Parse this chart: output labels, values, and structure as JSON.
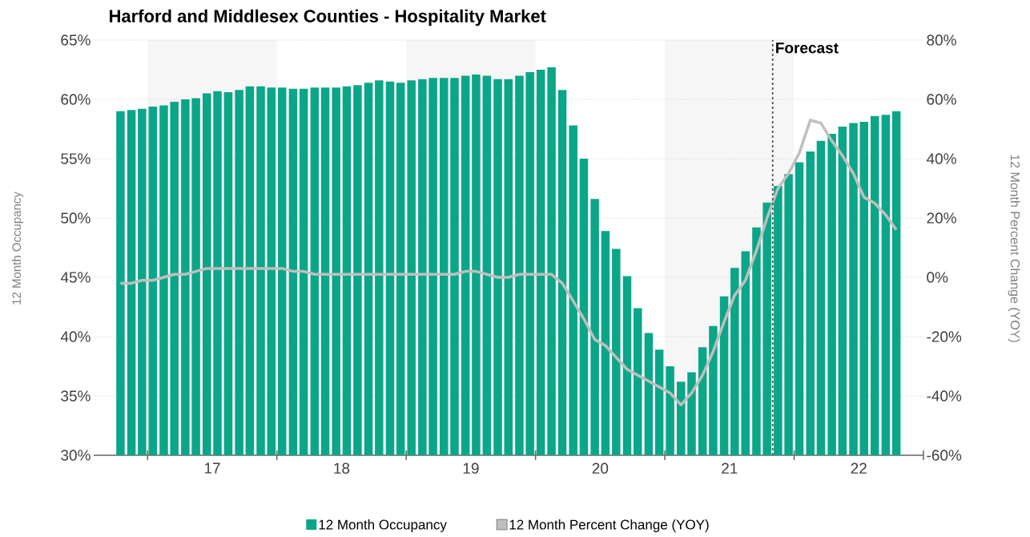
{
  "chart_data": {
    "type": "bar",
    "title": "Harford and Middlesex Counties - Hospitality Market",
    "ylabel": "12 Month Occupancy",
    "y2label": "12 Month Percent Change (YOY)",
    "x": [
      "2016-10-16",
      "2016-11-16",
      "2016-12-16",
      "2017-01-16",
      "2017-02-15",
      "2017-03-16",
      "2017-04-16",
      "2017-05-16",
      "2017-06-16",
      "2017-07-16",
      "2017-08-16",
      "2017-09-16",
      "2017-10-16",
      "2017-11-16",
      "2017-12-16",
      "2018-01-16",
      "2018-02-15",
      "2018-03-16",
      "2018-04-16",
      "2018-05-16",
      "2018-06-16",
      "2018-07-16",
      "2018-08-16",
      "2018-09-16",
      "2018-10-16",
      "2018-11-16",
      "2018-12-16",
      "2019-01-16",
      "2019-02-15",
      "2019-03-16",
      "2019-04-16",
      "2019-05-16",
      "2019-06-16",
      "2019-07-16",
      "2019-08-16",
      "2019-09-16",
      "2019-10-16",
      "2019-11-16",
      "2019-12-16",
      "2020-01-16",
      "2020-02-15",
      "2020-03-16",
      "2020-04-16",
      "2020-05-16",
      "2020-06-16",
      "2020-07-16",
      "2020-08-16",
      "2020-09-16",
      "2020-10-16",
      "2020-11-16",
      "2020-12-16",
      "2021-01-16",
      "2021-02-15",
      "2021-03-16",
      "2021-04-16",
      "2021-05-16",
      "2021-06-16",
      "2021-07-16",
      "2021-08-16",
      "2021-09-16",
      "2021-10-16",
      "2021-11-16",
      "2021-12-16",
      "2022-01-16",
      "2022-02-15",
      "2022-03-16",
      "2022-04-16",
      "2022-05-16",
      "2022-06-16",
      "2022-07-16",
      "2022-08-16",
      "2022-09-16",
      "2022-10-16"
    ],
    "xlim": [
      "2016-08-01",
      "2023-01-01"
    ],
    "xticks": [
      {
        "value": "2017-01-01",
        "label": null
      },
      {
        "value": "2017-07-01",
        "label": "17"
      },
      {
        "value": "2018-01-01",
        "label": null
      },
      {
        "value": "2018-07-01",
        "label": "18"
      },
      {
        "value": "2019-01-01",
        "label": null
      },
      {
        "value": "2019-07-01",
        "label": "19"
      },
      {
        "value": "2020-01-01",
        "label": null
      },
      {
        "value": "2020-07-01",
        "label": "20"
      },
      {
        "value": "2021-01-01",
        "label": null
      },
      {
        "value": "2021-07-01",
        "label": "21"
      },
      {
        "value": "2022-01-01",
        "label": null
      },
      {
        "value": "2022-07-01",
        "label": "22"
      },
      {
        "value": "2023-01-01",
        "label": null
      }
    ],
    "ylim": [
      30,
      65
    ],
    "yticks": [
      {
        "value": 30,
        "label": "30%"
      },
      {
        "value": 35,
        "label": "35%"
      },
      {
        "value": 40,
        "label": "40%"
      },
      {
        "value": 45,
        "label": "45%"
      },
      {
        "value": 50,
        "label": "50%"
      },
      {
        "value": 55,
        "label": "55%"
      },
      {
        "value": 60,
        "label": "60%"
      },
      {
        "value": 65,
        "label": "65%"
      }
    ],
    "y2lim": [
      -60,
      80
    ],
    "y2ticks": [
      {
        "value": -60,
        "label": "-60%"
      },
      {
        "value": -40,
        "label": "-40%"
      },
      {
        "value": -20,
        "label": "-20%"
      },
      {
        "value": 0,
        "label": "0%"
      },
      {
        "value": 20,
        "label": "20%"
      },
      {
        "value": 40,
        "label": "40%"
      },
      {
        "value": 60,
        "label": "60%"
      },
      {
        "value": 80,
        "label": "80%"
      }
    ],
    "series": [
      {
        "name": "12 Month Occupancy",
        "color": "#0aa688",
        "values": [
          59.0,
          59.1,
          59.2,
          59.4,
          59.5,
          59.8,
          60.0,
          60.1,
          60.5,
          60.7,
          60.6,
          60.8,
          61.1,
          61.1,
          61.0,
          61.0,
          60.9,
          60.9,
          61.0,
          61.0,
          61.0,
          61.1,
          61.2,
          61.4,
          61.6,
          61.5,
          61.4,
          61.6,
          61.7,
          61.8,
          61.8,
          61.8,
          62.0,
          62.1,
          62.0,
          61.7,
          61.7,
          62.0,
          62.3,
          62.5,
          62.7,
          60.8,
          57.8,
          55.0,
          51.6,
          48.9,
          47.4,
          45.1,
          42.4,
          40.3,
          38.9,
          37.5,
          36.2,
          37.0,
          39.1,
          40.9,
          43.4,
          45.8,
          47.2,
          49.2,
          51.3,
          52.7,
          53.7,
          54.7,
          55.6,
          56.5,
          57.1,
          57.7,
          58.0,
          58.1,
          58.6,
          58.7,
          59.0
        ]
      },
      {
        "name": "12 Month Percent Change (YOY)",
        "type": "line",
        "axis": "y2",
        "color": "#bfbfbf",
        "values": [
          -2,
          -2,
          -1,
          -1,
          0,
          1,
          1,
          2,
          3,
          3,
          3,
          3,
          3,
          3,
          3,
          3,
          2,
          2,
          1,
          1,
          1,
          1,
          1,
          1,
          1,
          1,
          1,
          1,
          1,
          1,
          1,
          1,
          2,
          2,
          1,
          0,
          0,
          1,
          1,
          1,
          1,
          -2,
          -8,
          -14,
          -21,
          -23,
          -27,
          -31,
          -33,
          -35,
          -37,
          -39,
          -43,
          -39,
          -33,
          -25,
          -15,
          -6,
          -1,
          9,
          20,
          30,
          35,
          42,
          53,
          52,
          46,
          41,
          35,
          27,
          25,
          21,
          16
        ]
      }
    ],
    "ref_lines": [
      {
        "axis": "x",
        "value": "2021-11-01",
        "label": "Forecast",
        "color": "#555555",
        "line_style": "dashed"
      }
    ],
    "bands": [
      {
        "axis": "x",
        "from": "2017-01-01",
        "to": "2018-01-01",
        "color": "#f6f6f6"
      },
      {
        "axis": "x",
        "from": "2019-01-01",
        "to": "2020-01-01",
        "color": "#f6f6f6"
      },
      {
        "axis": "x",
        "from": "2021-01-01",
        "to": "2022-01-01",
        "color": "#f6f6f6"
      }
    ],
    "grid": "y",
    "legend": "bottom",
    "marker": "none"
  }
}
